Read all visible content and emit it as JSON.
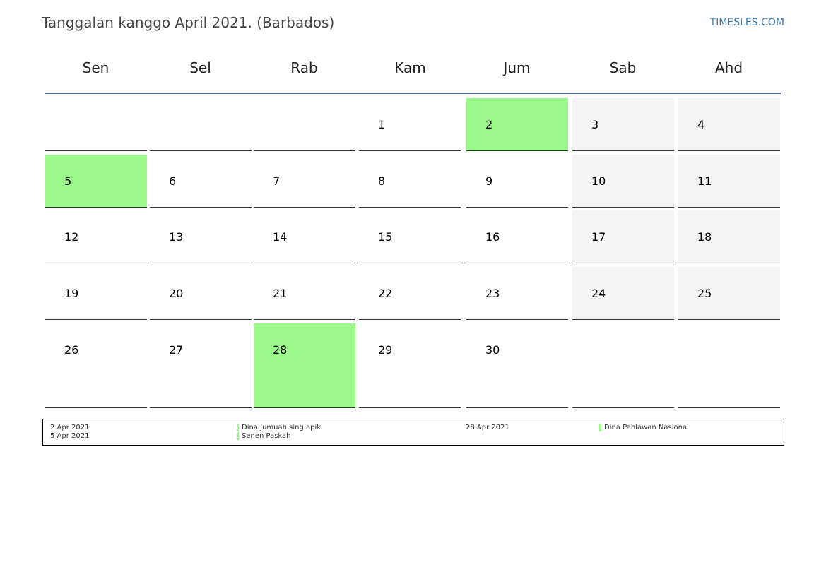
{
  "title": "Tanggalan kanggo April 2021. (Barbados)",
  "brand": "TIMESLES.COM",
  "colors": {
    "holiday": "#9af989",
    "weekend": "#f4f4f4",
    "header_line": "#4a6b93",
    "brand": "#3a78b5"
  },
  "weekdays": [
    "Sen",
    "Sel",
    "Rab",
    "Kam",
    "Jum",
    "Sab",
    "Ahd"
  ],
  "weeks": [
    [
      {
        "day": ""
      },
      {
        "day": ""
      },
      {
        "day": ""
      },
      {
        "day": "1"
      },
      {
        "day": "2",
        "holiday": true
      },
      {
        "day": "3",
        "weekend": true
      },
      {
        "day": "4",
        "weekend": true
      }
    ],
    [
      {
        "day": "5",
        "holiday": true
      },
      {
        "day": "6"
      },
      {
        "day": "7"
      },
      {
        "day": "8"
      },
      {
        "day": "9"
      },
      {
        "day": "10",
        "weekend": true
      },
      {
        "day": "11",
        "weekend": true
      }
    ],
    [
      {
        "day": "12"
      },
      {
        "day": "13"
      },
      {
        "day": "14"
      },
      {
        "day": "15"
      },
      {
        "day": "16"
      },
      {
        "day": "17",
        "weekend": true
      },
      {
        "day": "18",
        "weekend": true
      }
    ],
    [
      {
        "day": "19"
      },
      {
        "day": "20"
      },
      {
        "day": "21"
      },
      {
        "day": "22"
      },
      {
        "day": "23"
      },
      {
        "day": "24",
        "weekend": true
      },
      {
        "day": "25",
        "weekend": true
      }
    ],
    [
      {
        "day": "26"
      },
      {
        "day": "27"
      },
      {
        "day": "28",
        "holiday": true
      },
      {
        "day": "29"
      },
      {
        "day": "30"
      },
      {
        "day": ""
      },
      {
        "day": ""
      }
    ]
  ],
  "legend": [
    {
      "date": "2 Apr 2021",
      "name": "Dina Jumuah sing apik"
    },
    {
      "date": "5 Apr 2021",
      "name": "Senen Paskah"
    },
    {
      "date": "28 Apr 2021",
      "name": "Dina Pahlawan Nasional"
    }
  ]
}
